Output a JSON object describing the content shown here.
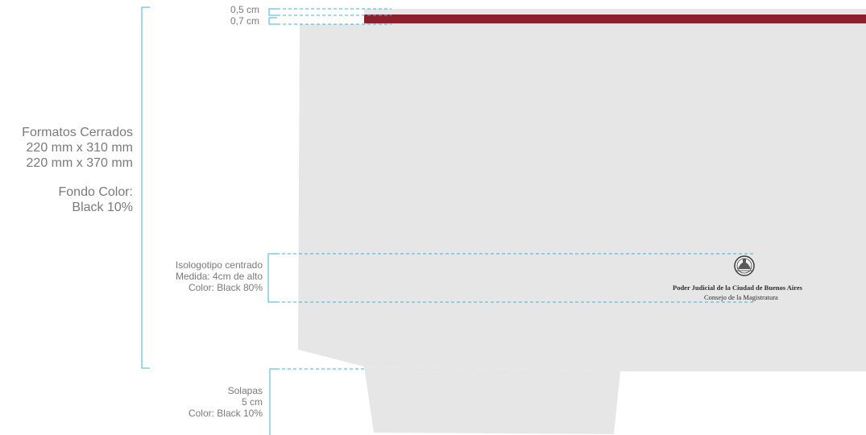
{
  "dimensions": {
    "top_band": "0,5 cm",
    "margin": "0,7 cm"
  },
  "formats": {
    "title": "Formatos Cerrados",
    "size_1": "220 mm x 310 mm",
    "size_2": "220 mm x 370 mm",
    "background_label": "Fondo Color:",
    "background_value": "Black 10%"
  },
  "logo_spec": {
    "line_1": "Isologotipo centrado",
    "line_2": "Medida: 4cm de alto",
    "line_3": "Color: Black 80%"
  },
  "flaps": {
    "line_1": "Solapas",
    "line_2": "5 cm",
    "line_3": "Color: Black 10%"
  },
  "logo": {
    "name": "Poder Judicial de la Ciudad de Buenos Aires",
    "subtitle": "Consejo de la Magistratura",
    "icon": "seal-icon"
  },
  "colors": {
    "folder_fill": "#e6e6e6",
    "top_band": "#8e1f2c",
    "guide_line": "#3cb4dc",
    "label_text": "#7a7a7a",
    "logo_text": "#2f2f2f"
  }
}
